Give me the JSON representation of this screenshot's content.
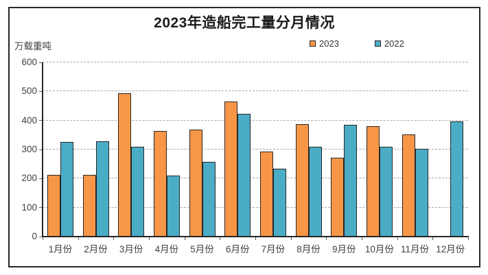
{
  "chart_data": {
    "type": "bar",
    "title": "2023年造船完工量分月情况",
    "unit_label": "万载重吨",
    "categories": [
      "1月份",
      "2月份",
      "3月份",
      "4月份",
      "5月份",
      "6月份",
      "7月份",
      "8月份",
      "9月份",
      "10月份",
      "11月份",
      "12月份"
    ],
    "series": [
      {
        "name": "2023",
        "color": "#F79646",
        "values": [
          212,
          212,
          493,
          363,
          368,
          465,
          292,
          388,
          272,
          380,
          352,
          null
        ]
      },
      {
        "name": "2022",
        "color": "#4BACC6",
        "values": [
          327,
          328,
          309,
          210,
          257,
          422,
          235,
          310,
          384,
          309,
          302,
          396
        ]
      }
    ],
    "ylim": [
      0,
      600
    ],
    "yticks": [
      0,
      100,
      200,
      300,
      400,
      500,
      600
    ],
    "grid": "horizontal-dashed",
    "legend_position": "top-right",
    "colors": {
      "bar_border": "#262626",
      "gridline": "#A6A6A6",
      "axis": "#262626",
      "text": "#404040",
      "title": "#1A1A1A"
    }
  }
}
